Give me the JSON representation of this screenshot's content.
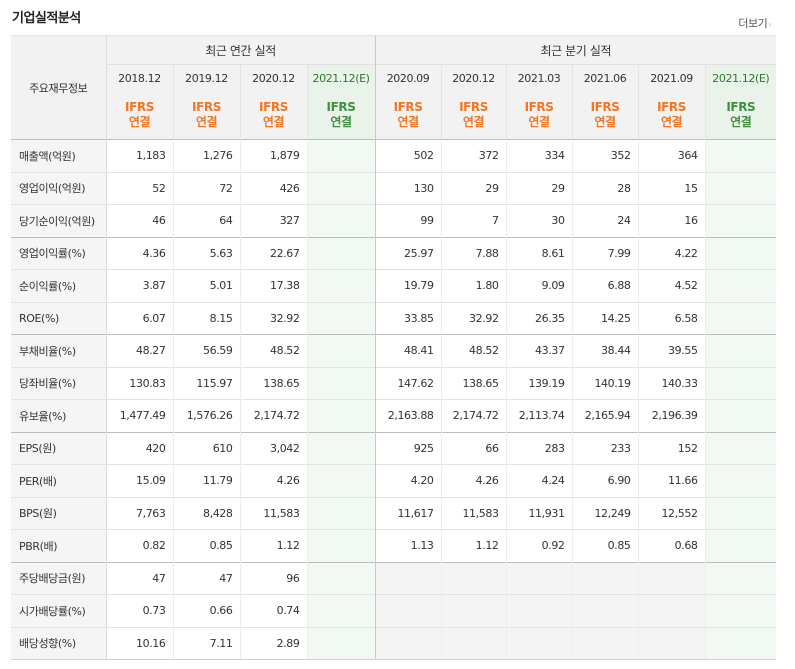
{
  "section_title": "기업실적분석",
  "more_link": "더보기",
  "more_arrow": "›",
  "header": {
    "corner": "주요재무정보",
    "annual_group": "최근 연간 실적",
    "quarter_group": "최근 분기 실적",
    "periods": [
      "2018.12",
      "2019.12",
      "2020.12",
      "2021.12(E)",
      "2020.09",
      "2020.12",
      "2021.03",
      "2021.06",
      "2021.09",
      "2021.12(E)"
    ],
    "ifrs_top": "IFRS",
    "ifrs_bottom": "연결"
  },
  "rows": [
    {
      "label": "매출액(억원)",
      "values": [
        "1,183",
        "1,276",
        "1,879",
        "",
        "502",
        "372",
        "334",
        "352",
        "364",
        ""
      ]
    },
    {
      "label": "영업이익(억원)",
      "values": [
        "52",
        "72",
        "426",
        "",
        "130",
        "29",
        "29",
        "28",
        "15",
        ""
      ]
    },
    {
      "label": "당기순이익(억원)",
      "values": [
        "46",
        "64",
        "327",
        "",
        "99",
        "7",
        "30",
        "24",
        "16",
        ""
      ]
    },
    {
      "label": "영업이익률(%)",
      "values": [
        "4.36",
        "5.63",
        "22.67",
        "",
        "25.97",
        "7.88",
        "8.61",
        "7.99",
        "4.22",
        ""
      ]
    },
    {
      "label": "순이익률(%)",
      "values": [
        "3.87",
        "5.01",
        "17.38",
        "",
        "19.79",
        "1.80",
        "9.09",
        "6.88",
        "4.52",
        ""
      ]
    },
    {
      "label": "ROE(%)",
      "values": [
        "6.07",
        "8.15",
        "32.92",
        "",
        "33.85",
        "32.92",
        "26.35",
        "14.25",
        "6.58",
        ""
      ]
    },
    {
      "label": "부채비율(%)",
      "values": [
        "48.27",
        "56.59",
        "48.52",
        "",
        "48.41",
        "48.52",
        "43.37",
        "38.44",
        "39.55",
        ""
      ]
    },
    {
      "label": "당좌비율(%)",
      "values": [
        "130.83",
        "115.97",
        "138.65",
        "",
        "147.62",
        "138.65",
        "139.19",
        "140.19",
        "140.33",
        ""
      ]
    },
    {
      "label": "유보율(%)",
      "values": [
        "1,477.49",
        "1,576.26",
        "2,174.72",
        "",
        "2,163.88",
        "2,174.72",
        "2,113.74",
        "2,165.94",
        "2,196.39",
        ""
      ]
    },
    {
      "label": "EPS(원)",
      "values": [
        "420",
        "610",
        "3,042",
        "",
        "925",
        "66",
        "283",
        "233",
        "152",
        ""
      ]
    },
    {
      "label": "PER(배)",
      "values": [
        "15.09",
        "11.79",
        "4.26",
        "",
        "4.20",
        "4.26",
        "4.24",
        "6.90",
        "11.66",
        ""
      ]
    },
    {
      "label": "BPS(원)",
      "values": [
        "7,763",
        "8,428",
        "11,583",
        "",
        "11,617",
        "11,583",
        "11,931",
        "12,249",
        "12,552",
        ""
      ]
    },
    {
      "label": "PBR(배)",
      "values": [
        "0.82",
        "0.85",
        "1.12",
        "",
        "1.13",
        "1.12",
        "0.92",
        "0.85",
        "0.68",
        ""
      ]
    },
    {
      "label": "주당배당금(원)",
      "values": [
        "47",
        "47",
        "96",
        "",
        "",
        "",
        "",
        "",
        "",
        ""
      ]
    },
    {
      "label": "시가배당률(%)",
      "values": [
        "0.73",
        "0.66",
        "0.74",
        "",
        "",
        "",
        "",
        "",
        "",
        ""
      ]
    },
    {
      "label": "배당성향(%)",
      "values": [
        "10.16",
        "7.11",
        "2.89",
        "",
        "",
        "",
        "",
        "",
        "",
        ""
      ]
    }
  ],
  "colors": {
    "ifrs": "#f07623",
    "estimate": "#3e8f3e",
    "estimate_bg": "#f2f8f2"
  }
}
